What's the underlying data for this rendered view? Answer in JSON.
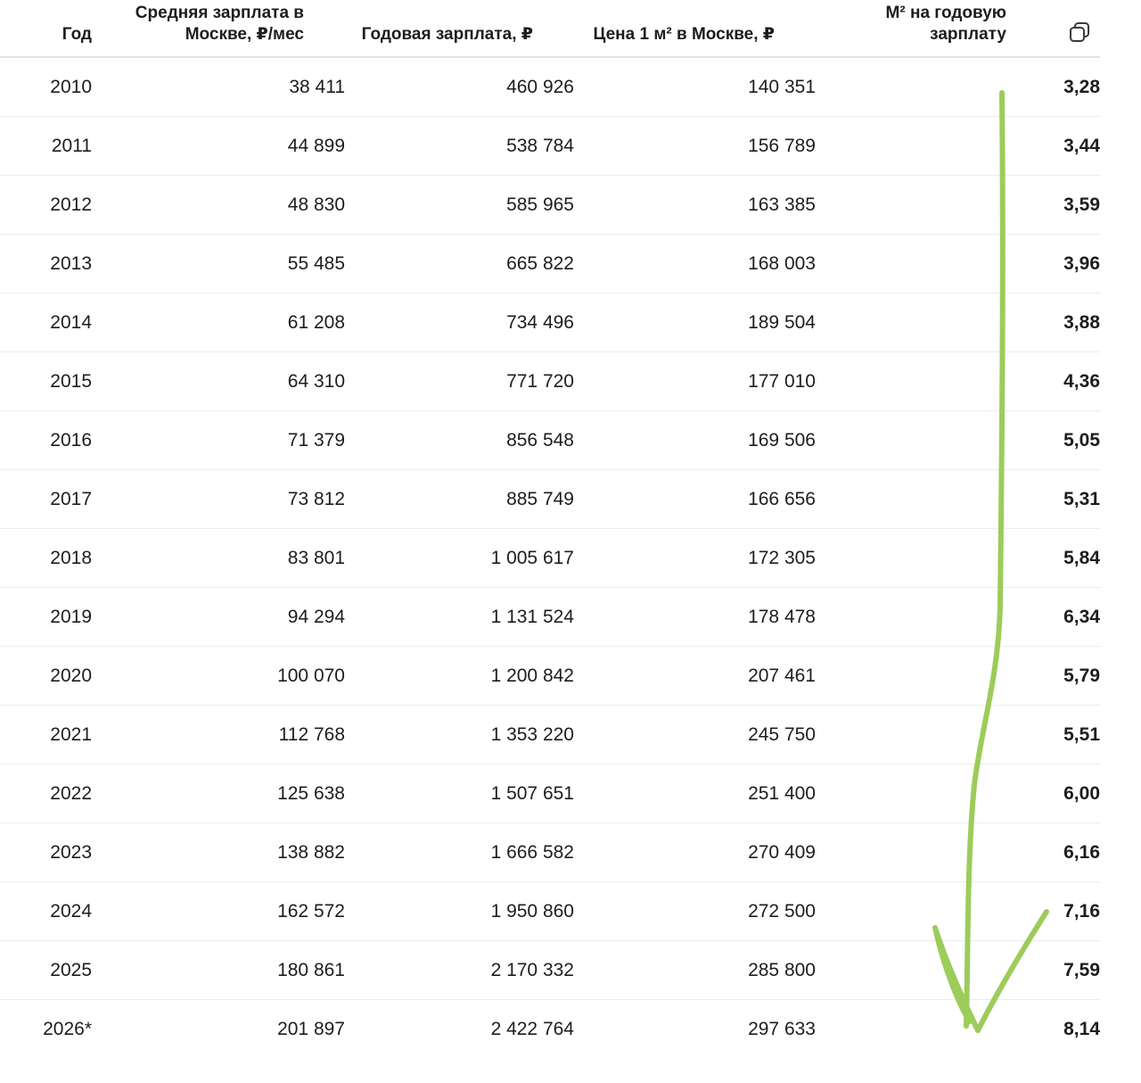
{
  "table": {
    "headers": {
      "year": "Год",
      "avg_salary_line1": "Средняя зарплата в",
      "avg_salary_line2": "Москве, ₽/мес",
      "annual_salary": "Годовая зарплата, ₽",
      "price_per_m2": "Цена 1 м² в Москве, ₽",
      "m2_per_year_line1": "М² на годовую",
      "m2_per_year_line2": "зарплату"
    },
    "copy_icon": "copy-icon",
    "rows": [
      {
        "year": "2010",
        "avg": "38 411",
        "annual": "460 926",
        "price": "140 351",
        "ratio": "3,28"
      },
      {
        "year": "2011",
        "avg": "44 899",
        "annual": "538 784",
        "price": "156 789",
        "ratio": "3,44"
      },
      {
        "year": "2012",
        "avg": "48 830",
        "annual": "585 965",
        "price": "163 385",
        "ratio": "3,59"
      },
      {
        "year": "2013",
        "avg": "55 485",
        "annual": "665 822",
        "price": "168 003",
        "ratio": "3,96"
      },
      {
        "year": "2014",
        "avg": "61 208",
        "annual": "734 496",
        "price": "189 504",
        "ratio": "3,88"
      },
      {
        "year": "2015",
        "avg": "64 310",
        "annual": "771 720",
        "price": "177 010",
        "ratio": "4,36"
      },
      {
        "year": "2016",
        "avg": "71 379",
        "annual": "856 548",
        "price": "169 506",
        "ratio": "5,05"
      },
      {
        "year": "2017",
        "avg": "73 812",
        "annual": "885 749",
        "price": "166 656",
        "ratio": "5,31"
      },
      {
        "year": "2018",
        "avg": "83 801",
        "annual": "1 005 617",
        "price": "172 305",
        "ratio": "5,84"
      },
      {
        "year": "2019",
        "avg": "94 294",
        "annual": "1 131 524",
        "price": "178 478",
        "ratio": "6,34"
      },
      {
        "year": "2020",
        "avg": "100 070",
        "annual": "1 200 842",
        "price": "207 461",
        "ratio": "5,79"
      },
      {
        "year": "2021",
        "avg": "112 768",
        "annual": "1 353 220",
        "price": "245 750",
        "ratio": "5,51"
      },
      {
        "year": "2022",
        "avg": "125 638",
        "annual": "1 507 651",
        "price": "251 400",
        "ratio": "6,00"
      },
      {
        "year": "2023",
        "avg": "138 882",
        "annual": "1 666 582",
        "price": "270 409",
        "ratio": "6,16"
      },
      {
        "year": "2024",
        "avg": "162 572",
        "annual": "1 950 860",
        "price": "272 500",
        "ratio": "7,16"
      },
      {
        "year": "2025",
        "avg": "180 861",
        "annual": "2 170 332",
        "price": "285 800",
        "ratio": "7,59"
      },
      {
        "year": "2026*",
        "avg": "201 897",
        "annual": "2 422 764",
        "price": "297 633",
        "ratio": "8,14"
      }
    ]
  },
  "annotation": {
    "arrow_color": "#9ccc5a",
    "arrow_icon": "hand-drawn-down-arrow"
  }
}
